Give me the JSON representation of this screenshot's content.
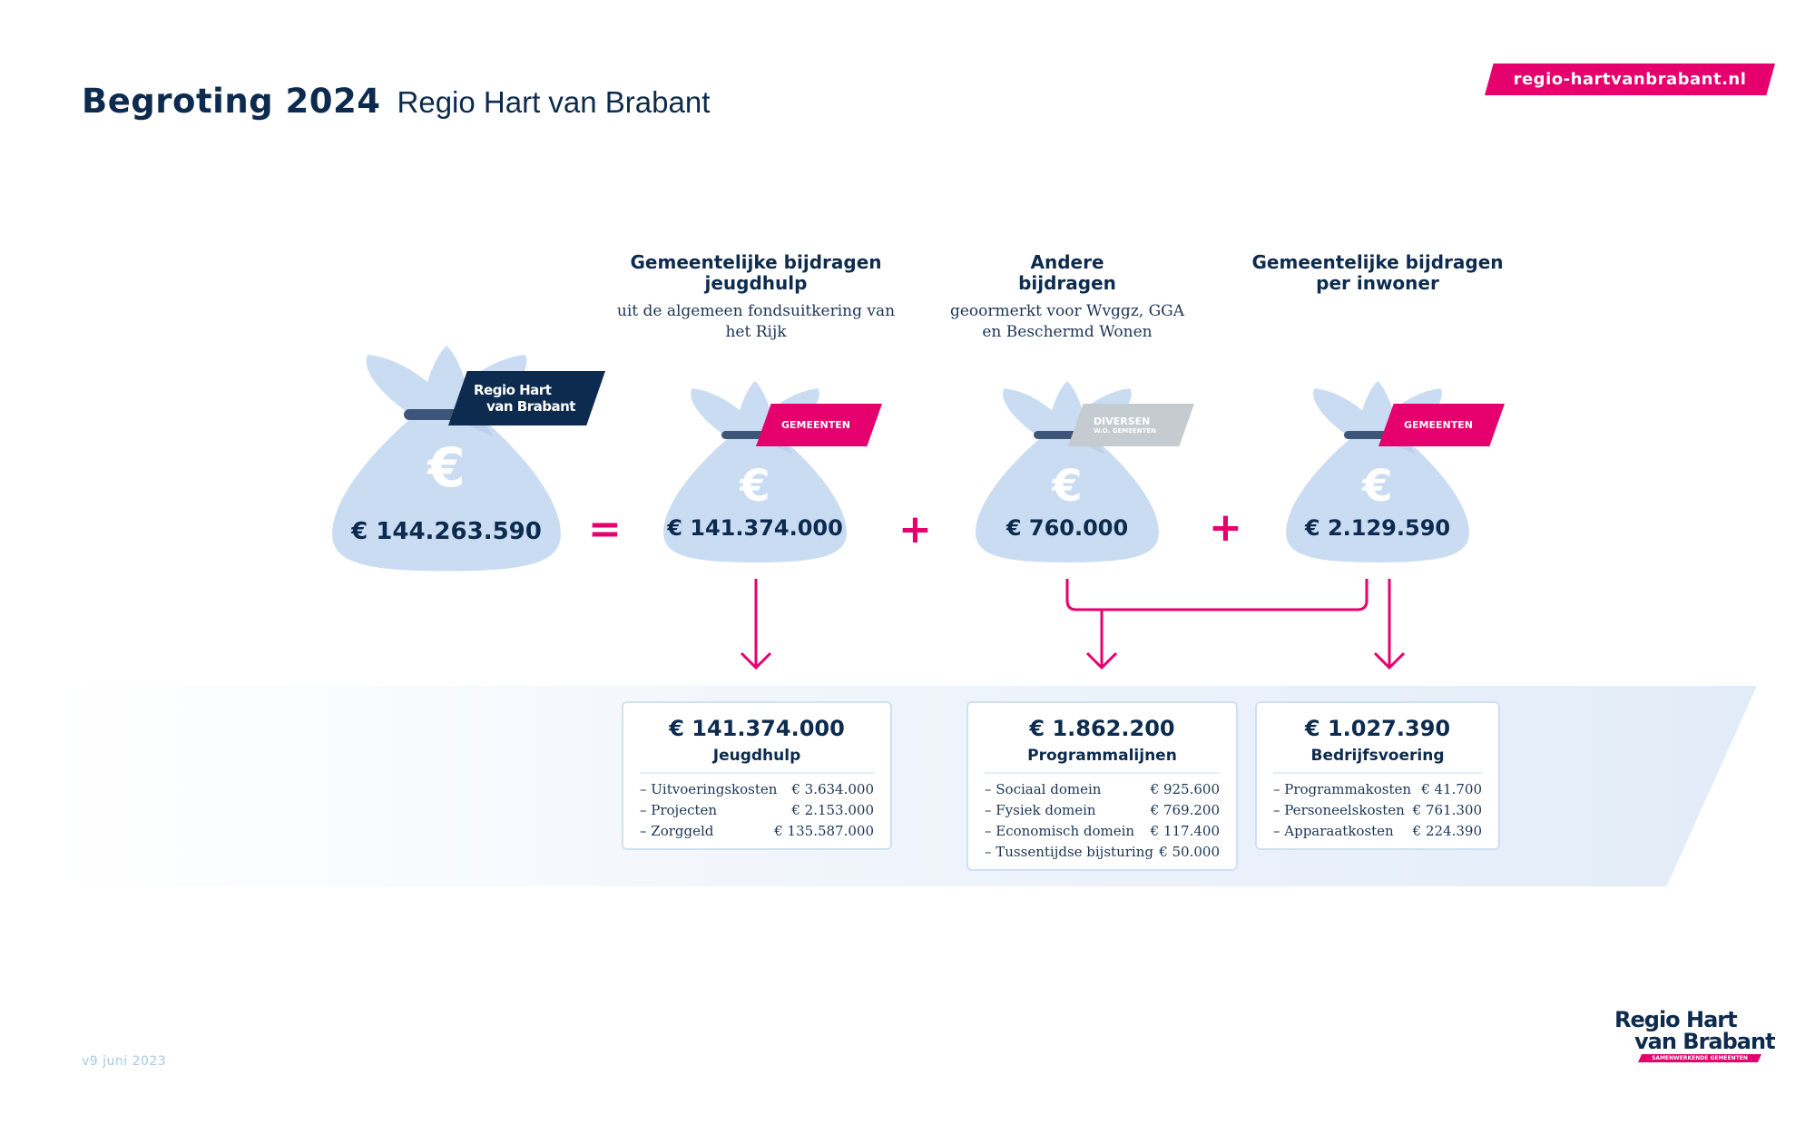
{
  "header": {
    "title_bold": "Begroting 2024",
    "title_regular": "Regio Hart van Brabant",
    "website": "regio-hartvanbrabant.nl"
  },
  "columns": [
    {
      "title": "Gemeentelijke bijdragen jeugdhulp",
      "subtitle": "uit de algemeen fondsuitkering van het Rijk"
    },
    {
      "title": "Andere bijdragen",
      "subtitle": "geoormerkt voor Wvggz, GGA en Beschermd Wonen"
    },
    {
      "title": "Gemeentelijke bijdragen per inwoner",
      "subtitle": ""
    }
  ],
  "bags": [
    {
      "amount": "€ 144.263.590",
      "tag_line1": "Regio Hart",
      "tag_line2": "van Brabant",
      "tag_color": "#0d2b4e"
    },
    {
      "amount": "€ 141.374.000",
      "tag_line1": "GEMEENTEN",
      "tag_line2": "",
      "tag_color": "#e5006d"
    },
    {
      "amount": "€ 760.000",
      "tag_line1": "DIVERSEN",
      "tag_line2": "W.O. GEMEENTEN",
      "tag_color": "#c5ccd1"
    },
    {
      "amount": "€ 2.129.590",
      "tag_line1": "GEMEENTEN",
      "tag_line2": "",
      "tag_color": "#e5006d"
    }
  ],
  "symbols": {
    "euro": "€",
    "equals": "=",
    "plus": "+"
  },
  "cards": [
    {
      "amount": "€ 141.374.000",
      "title": "Jeugdhulp",
      "rows": [
        {
          "label": "– Uitvoeringskosten",
          "value": "€ 3.634.000"
        },
        {
          "label": "– Projecten",
          "value": "€ 2.153.000"
        },
        {
          "label": "– Zorggeld",
          "value": "€ 135.587.000"
        }
      ]
    },
    {
      "amount": "€ 1.862.200",
      "title": "Programmalijnen",
      "rows": [
        {
          "label": "– Sociaal domein",
          "value": "€ 925.600"
        },
        {
          "label": "– Fysiek domein",
          "value": "€ 769.200"
        },
        {
          "label": "– Economisch domein",
          "value": "€ 117.400"
        },
        {
          "label": "– Tussentijdse bijsturing",
          "value": "€ 50.000"
        }
      ]
    },
    {
      "amount": "€ 1.027.390",
      "title": "Bedrijfsvoering",
      "rows": [
        {
          "label": "– Programmakosten",
          "value": "€ 41.700"
        },
        {
          "label": "– Personeelskosten",
          "value": "€ 761.300"
        },
        {
          "label": "– Apparaatkosten",
          "value": "€ 224.390"
        }
      ]
    }
  ],
  "footer": {
    "version": "v9 juni 2023"
  },
  "logo": {
    "line1": "Regio Hart",
    "line2": "van Brabant",
    "tagline": "SAMENWERKENDE GEMEENTEN"
  },
  "colors": {
    "navy": "#0d2b4e",
    "pink": "#e5006d",
    "bag": "#c9dcf2",
    "band": "#e2ecf8"
  }
}
